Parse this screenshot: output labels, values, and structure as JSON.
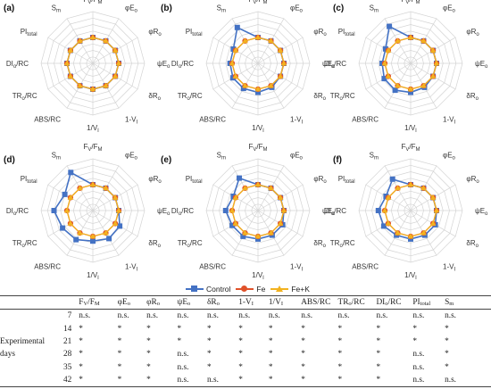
{
  "chart_data": {
    "type": "radar",
    "axes": [
      "F<sub>V</sub>/F<sub>M</sub>",
      "φE<sub>o</sub>",
      "φR<sub>o</sub>",
      "ψE<sub>o</sub>",
      "δR<sub>o</sub>",
      "1-V<sub>I</sub>",
      "1/V<sub>I</sub>",
      "ABS/RC",
      "TR<sub>o</sub>/RC",
      "DI<sub>o</sub>/RC",
      "PI<sub>total</sub>",
      "S<sub>m</sub>"
    ],
    "scale_max": 2.0,
    "grid_rings": 8,
    "legend_position": "bottom",
    "series_styles": [
      {
        "name": "Control",
        "color": "#4472C4",
        "marker": "square"
      },
      {
        "name": "Fe",
        "color": "#E0522A",
        "marker": "circle"
      },
      {
        "name": "Fe+K",
        "color": "#F2B21F",
        "marker": "triangle"
      }
    ],
    "panels": [
      {
        "label": "(a)",
        "series": [
          [
            1,
            1,
            1,
            1,
            1,
            1,
            1,
            1,
            1,
            1,
            1,
            1
          ],
          [
            1,
            1,
            1,
            1,
            1,
            1,
            1,
            1,
            1,
            1,
            1,
            1
          ],
          [
            1,
            1,
            1,
            1,
            1,
            1,
            1,
            1,
            1,
            1,
            1,
            1
          ]
        ]
      },
      {
        "label": "(b)",
        "series": [
          [
            1,
            1,
            1,
            1,
            1,
            1.07,
            1.12,
            1.12,
            1.12,
            1.08,
            1.1,
            1.6
          ],
          [
            1,
            1,
            1,
            1,
            1,
            1,
            1,
            1,
            1,
            1,
            1,
            1
          ],
          [
            1,
            1,
            1,
            1,
            1,
            1,
            1,
            1,
            1,
            1,
            1,
            1
          ]
        ]
      },
      {
        "label": "(c)",
        "series": [
          [
            1,
            1,
            1,
            1,
            1,
            1.07,
            1.12,
            1.2,
            1.18,
            1.1,
            1.12,
            1.65
          ],
          [
            1,
            1,
            1,
            1,
            1,
            1,
            1,
            1,
            1,
            1,
            1,
            1
          ],
          [
            1,
            1,
            1,
            1,
            1,
            1,
            1,
            1,
            1,
            1,
            1,
            1
          ]
        ]
      },
      {
        "label": "(d)",
        "series": [
          [
            1,
            1,
            1,
            1,
            1.2,
            1.25,
            1.18,
            1.3,
            1.35,
            1.5,
            1.25,
            1.7
          ],
          [
            1,
            1,
            1,
            1,
            1,
            1,
            1,
            1,
            1,
            1,
            1,
            1
          ],
          [
            1,
            1,
            1,
            1,
            1,
            1,
            1,
            1,
            1,
            1,
            1,
            1
          ]
        ]
      },
      {
        "label": "(e)",
        "series": [
          [
            1,
            1,
            1,
            1,
            1.1,
            1.1,
            1.1,
            1.15,
            1.15,
            1.25,
            1.1,
            1.45
          ],
          [
            1,
            1,
            1,
            1,
            1,
            1,
            1,
            1,
            1,
            1,
            1,
            1
          ],
          [
            1,
            1,
            1,
            1,
            1,
            1,
            1,
            1,
            1,
            1,
            1,
            1
          ]
        ]
      },
      {
        "label": "(f)",
        "series": [
          [
            1,
            1,
            1,
            1,
            1.1,
            1.1,
            1.1,
            1.1,
            1.2,
            1.25,
            1.1,
            1.4
          ],
          [
            1,
            1,
            1,
            1,
            1,
            1,
            1,
            1,
            1,
            1,
            1,
            1
          ],
          [
            1,
            1,
            1,
            1,
            1,
            1,
            1,
            1,
            1,
            1,
            1,
            1
          ]
        ]
      }
    ]
  },
  "table": {
    "columns": [
      "",
      "",
      "F<sub>V</sub>/F<sub>M</sub>",
      "φE<sub>o</sub>",
      "φR<sub>o</sub>",
      "ψE<sub>o</sub>",
      "δR<sub>o</sub>",
      "1-V<sub>I</sub>",
      "1/V<sub>I</sub>",
      "ABS/RC",
      "TR<sub>o</sub>/RC",
      "DI<sub>o</sub>/RC",
      "PI<sub>total</sub>",
      "S<sub>m</sub>"
    ],
    "row_group_label_lines": [
      "Experimental",
      "days"
    ],
    "rows": [
      {
        "day": "7",
        "values": [
          "n.s.",
          "n.s.",
          "n.s.",
          "n.s.",
          "n.s.",
          "n.s.",
          "n.s.",
          "n.s.",
          "n.s.",
          "n.s.",
          "n.s.",
          "n.s."
        ]
      },
      {
        "day": "14",
        "values": [
          "*",
          "*",
          "*",
          "*",
          "*",
          "*",
          "*",
          "*",
          "*",
          "*",
          "*",
          "*"
        ]
      },
      {
        "day": "21",
        "values": [
          "*",
          "*",
          "*",
          "*",
          "*",
          "*",
          "*",
          "*",
          "*",
          "*",
          "*",
          "*"
        ]
      },
      {
        "day": "28",
        "values": [
          "*",
          "*",
          "*",
          "n.s.",
          "*",
          "*",
          "*",
          "*",
          "*",
          "*",
          "n.s.",
          "*"
        ]
      },
      {
        "day": "35",
        "values": [
          "*",
          "*",
          "*",
          "n.s.",
          "*",
          "*",
          "*",
          "*",
          "*",
          "*",
          "n.s.",
          "*"
        ]
      },
      {
        "day": "42",
        "values": [
          "*",
          "*",
          "*",
          "n.s.",
          "n.s.",
          "*",
          "*",
          "*",
          "*",
          "*",
          "n.s.",
          "n.s."
        ]
      }
    ]
  }
}
